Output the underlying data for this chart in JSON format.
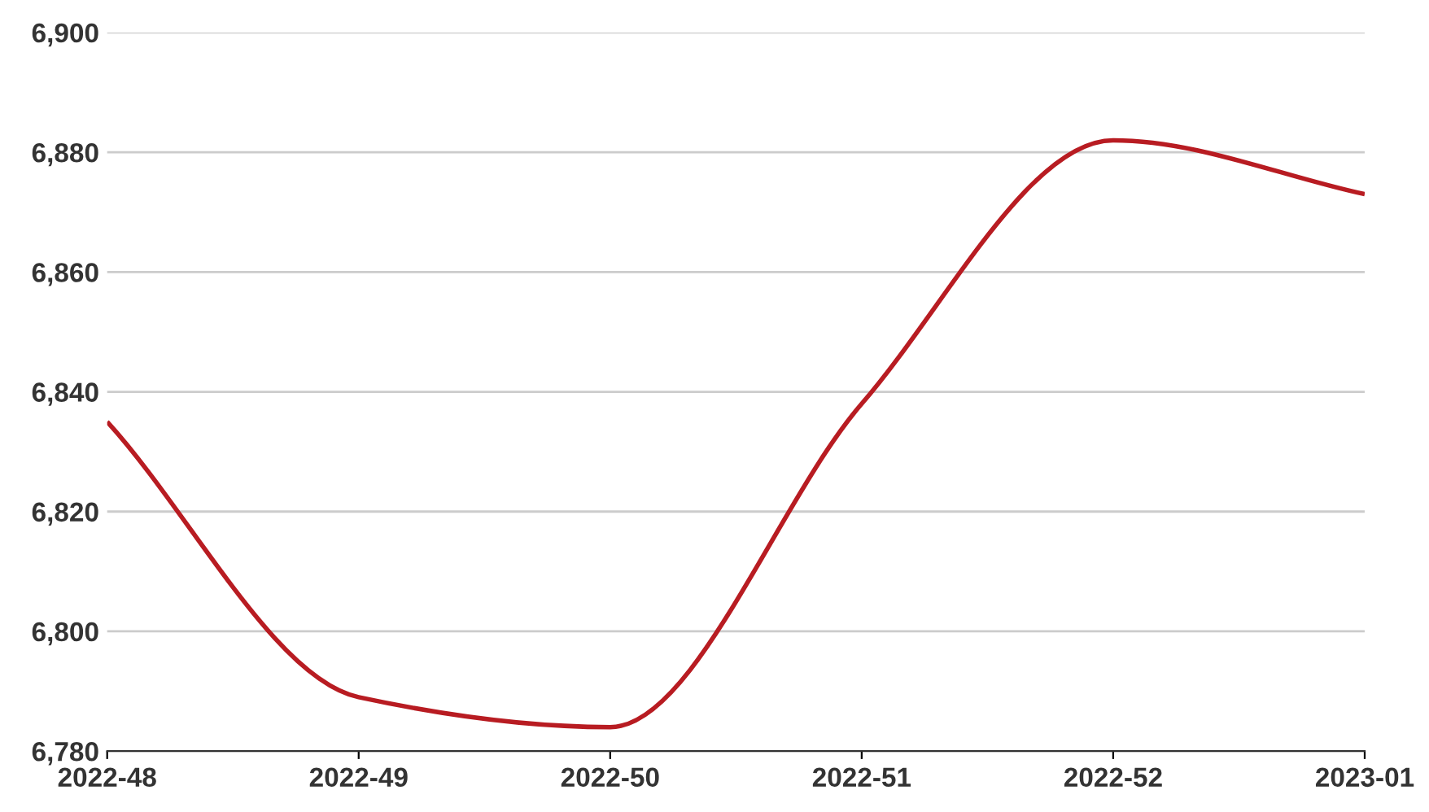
{
  "chart_data": {
    "type": "line",
    "categories": [
      "2022-48",
      "2022-49",
      "2022-50",
      "2022-51",
      "2022-52",
      "2023-01"
    ],
    "series": [
      {
        "color": "#b81c22",
        "values": [
          6835,
          6789,
          6784,
          6838,
          6882,
          6873
        ]
      }
    ],
    "ylim": [
      6780,
      6900
    ],
    "yticks": [
      {
        "value": 6780,
        "label": "6,780"
      },
      {
        "value": 6800,
        "label": "6,800"
      },
      {
        "value": 6820,
        "label": "6,820"
      },
      {
        "value": 6840,
        "label": "6,840"
      },
      {
        "value": 6860,
        "label": "6,860"
      },
      {
        "value": 6880,
        "label": "6,880"
      },
      {
        "value": 6900,
        "label": "6,900"
      }
    ],
    "grid": "y"
  }
}
